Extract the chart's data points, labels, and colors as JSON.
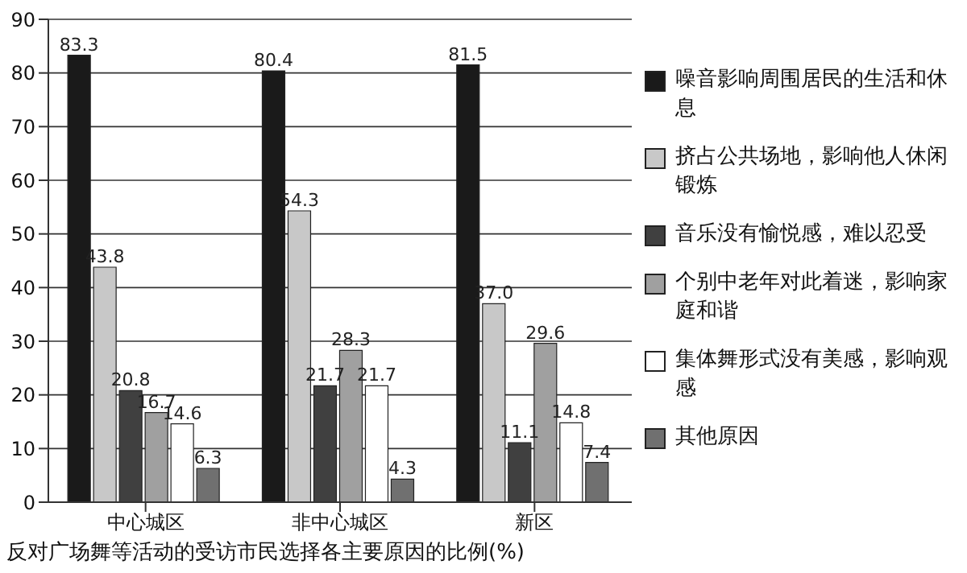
{
  "chart_data": {
    "type": "bar",
    "title": "反对广场舞等活动的受访市民选择各主要原因的比例(%)",
    "categories": [
      "中心城区",
      "非中心城区",
      "新区"
    ],
    "series": [
      {
        "name": "噪音影响周围居民的生活和休息",
        "color": "#1a1a1a",
        "values": [
          83.3,
          80.4,
          81.5
        ],
        "value_labels": [
          "83.3",
          "80.4",
          "81.5"
        ]
      },
      {
        "name": "挤占公共场地，影响他人休闲锻炼",
        "color": "#c8c8c8",
        "values": [
          43.8,
          54.3,
          37.0
        ],
        "value_labels": [
          "43.8",
          "54.3",
          "37.0"
        ]
      },
      {
        "name": "音乐没有愉悦感，难以忍受",
        "color": "#404040",
        "values": [
          20.8,
          21.7,
          11.1
        ],
        "value_labels": [
          "20.8",
          "21.7",
          "11.1"
        ]
      },
      {
        "name": "个别中老年对此着迷，影响家庭和谐",
        "color": "#a0a0a0",
        "values": [
          16.7,
          28.3,
          29.6
        ],
        "value_labels": [
          "16.7",
          "28.3",
          "29.6"
        ]
      },
      {
        "name": "集体舞形式没有美感，影响观感",
        "color": "#ffffff",
        "values": [
          14.6,
          21.7,
          14.8
        ],
        "value_labels": [
          "14.6",
          "21.7",
          "14.8"
        ]
      },
      {
        "name": "其他原因",
        "color": "#707070",
        "values": [
          6.3,
          4.3,
          7.4
        ],
        "value_labels": [
          "6.3",
          "4.3",
          "7.4"
        ]
      }
    ],
    "ylim": [
      0,
      90
    ],
    "yticks": [
      0,
      10,
      20,
      30,
      40,
      50,
      60,
      70,
      80,
      90
    ],
    "grid": "y",
    "legend": "right"
  }
}
